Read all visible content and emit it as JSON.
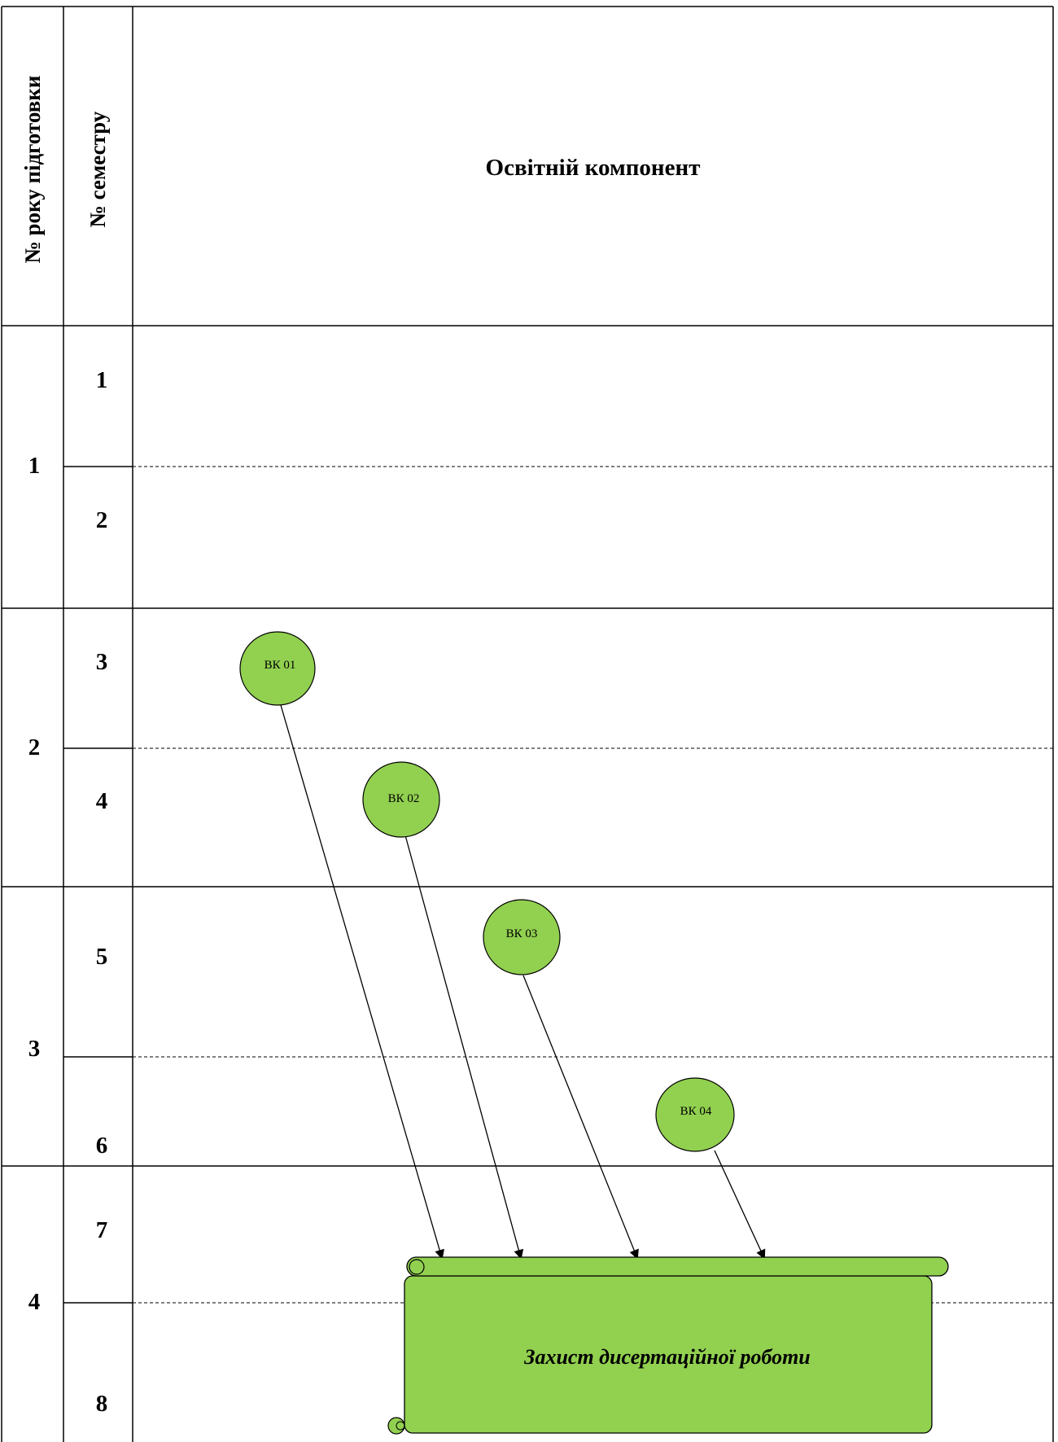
{
  "header": {
    "year_col": "№ року підготовки",
    "semester_col": "№ семестру",
    "component_col": "Освітній компонент"
  },
  "years": [
    "1",
    "2",
    "3",
    "4"
  ],
  "semesters": [
    "1",
    "2",
    "3",
    "4",
    "5",
    "6",
    "7",
    "8"
  ],
  "nodes": [
    {
      "id": "vk01",
      "label": "ВК 01"
    },
    {
      "id": "vk02",
      "label": "ВК 02"
    },
    {
      "id": "vk03",
      "label": "ВК 03"
    },
    {
      "id": "vk04",
      "label": "ВК 04"
    }
  ],
  "final": {
    "label": "Захист дисертаційної роботи"
  },
  "colors": {
    "node_fill": "#92d050",
    "line": "#000000"
  }
}
